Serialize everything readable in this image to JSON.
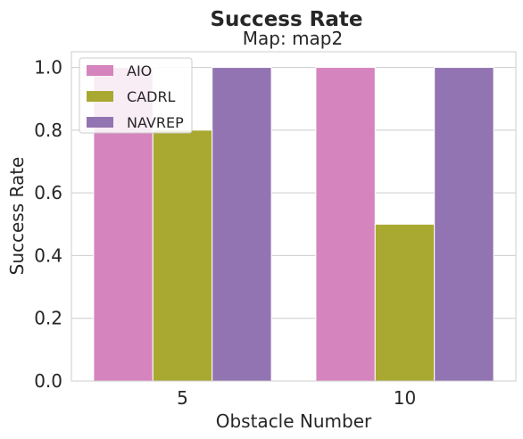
{
  "chart_data": {
    "type": "bar",
    "title": "Success Rate",
    "subtitle": "Map: map2",
    "xlabel": "Obstacle Number",
    "ylabel": "Success Rate",
    "categories": [
      "5",
      "10"
    ],
    "ylim": [
      0,
      1.05
    ],
    "yticks": [
      "0.0",
      "0.2",
      "0.4",
      "0.6",
      "0.8",
      "1.0"
    ],
    "grid": true,
    "legend_position": "top-left",
    "series": [
      {
        "name": "AIO",
        "color": "#d684bd",
        "values": [
          1.0,
          1.0
        ]
      },
      {
        "name": "CADRL",
        "color": "#a9a932",
        "values": [
          0.8,
          0.5
        ]
      },
      {
        "name": "NAVREP",
        "color": "#9274b2",
        "values": [
          1.0,
          1.0
        ]
      }
    ]
  }
}
